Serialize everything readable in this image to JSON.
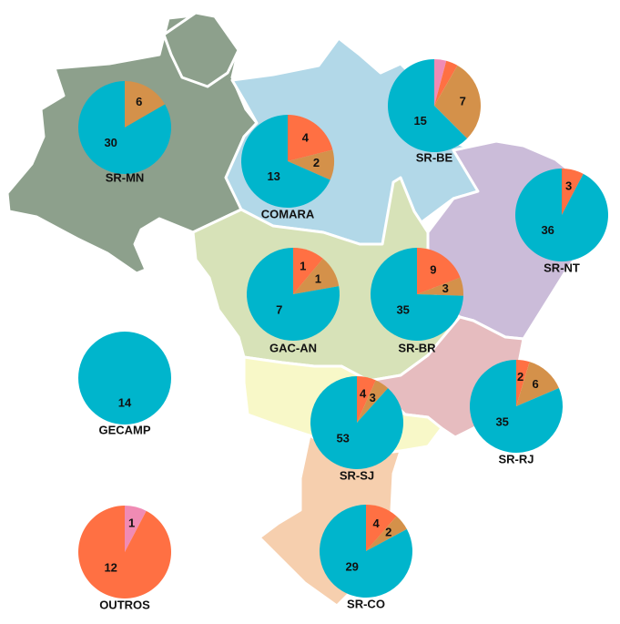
{
  "colors": {
    "cyan": "#00b5cc",
    "orange": "#ff7043",
    "brown": "#d4914a",
    "pink": "#f08bb4",
    "north_green": "#8da08c",
    "northeast_blue": "#b2d8e8",
    "northeast_east": "#cbbcd9",
    "central_green": "#d7e2b8",
    "southeast_red": "#e6bcbf",
    "southeast_yellow": "#f8f8c8",
    "south_peach": "#f6cfae"
  },
  "regions": [
    "SR-MN",
    "COMARA",
    "SR-BE",
    "SR-NT",
    "GAC-AN",
    "SR-BR",
    "GECAMP",
    "SR-SJ",
    "SR-RJ",
    "OUTROS",
    "SR-CO"
  ],
  "chart_data": {
    "type": "pie",
    "title": "",
    "series_colors": [
      "#00b5cc",
      "#ff7043",
      "#d4914a",
      "#f08bb4"
    ],
    "pies": [
      {
        "name": "SR-MN",
        "values": [
          30,
          0,
          6,
          0
        ],
        "labels": [
          "30",
          "",
          "6",
          ""
        ]
      },
      {
        "name": "COMARA",
        "values": [
          13,
          4,
          2,
          0
        ],
        "labels": [
          "13",
          "4",
          "2",
          ""
        ]
      },
      {
        "name": "SR-BE",
        "values": [
          15,
          1,
          7,
          1
        ],
        "labels": [
          "15",
          "",
          "7",
          ""
        ]
      },
      {
        "name": "SR-NT",
        "values": [
          36,
          3,
          0,
          0
        ],
        "labels": [
          "36",
          "3",
          "",
          ""
        ]
      },
      {
        "name": "GAC-AN",
        "values": [
          7,
          1,
          1,
          0
        ],
        "labels": [
          "7",
          "1",
          "1",
          ""
        ]
      },
      {
        "name": "SR-BR",
        "values": [
          35,
          9,
          3,
          0
        ],
        "labels": [
          "35",
          "9",
          "3",
          ""
        ]
      },
      {
        "name": "GECAMP",
        "values": [
          14,
          0,
          0,
          0
        ],
        "labels": [
          "14",
          "",
          "",
          ""
        ]
      },
      {
        "name": "SR-SJ",
        "values": [
          53,
          4,
          3,
          0
        ],
        "labels": [
          "53",
          "4",
          "3",
          ""
        ]
      },
      {
        "name": "SR-RJ",
        "values": [
          35,
          2,
          6,
          0
        ],
        "labels": [
          "35",
          "2",
          "6",
          ""
        ]
      },
      {
        "name": "OUTROS",
        "values": [
          0,
          12,
          0,
          1
        ],
        "labels": [
          "",
          "12",
          "",
          "1"
        ]
      },
      {
        "name": "SR-CO",
        "values": [
          29,
          4,
          2,
          0
        ],
        "labels": [
          "29",
          "4",
          "2",
          ""
        ]
      }
    ]
  }
}
